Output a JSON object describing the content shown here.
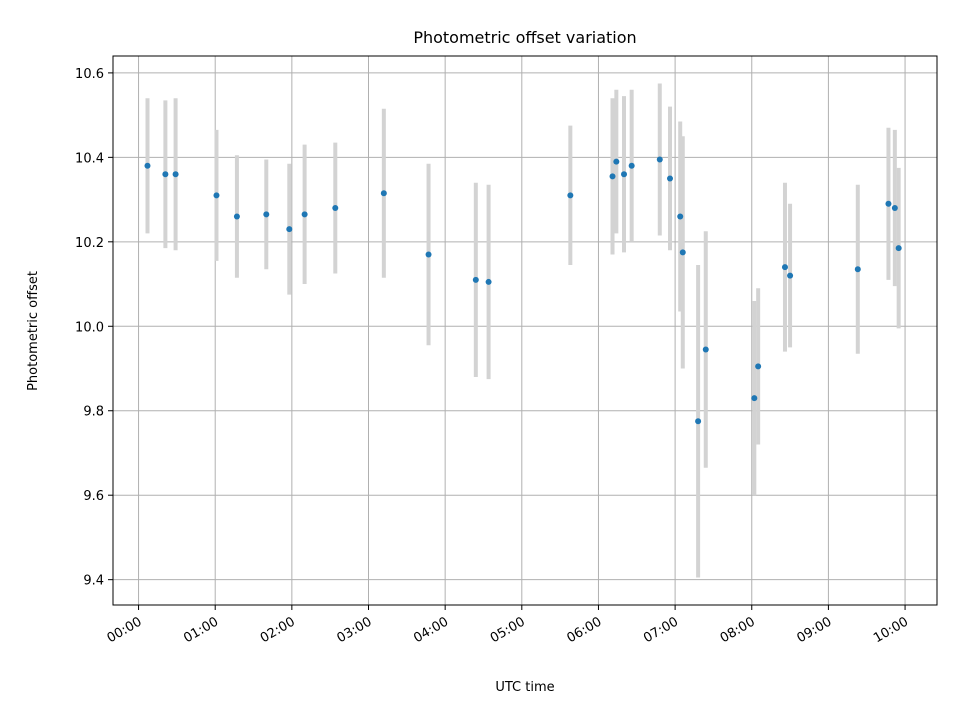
{
  "chart_data": {
    "type": "scatter",
    "title": "Photometric offset variation",
    "xlabel": "UTC time",
    "ylabel": "Photometric offset",
    "grid": true,
    "x_unit": "UTC time (HH:MM)",
    "x_ticks": [
      "00:00",
      "01:00",
      "02:00",
      "03:00",
      "04:00",
      "05:00",
      "06:00",
      "07:00",
      "08:00",
      "09:00",
      "10:00"
    ],
    "y_ticks": [
      "9.4",
      "9.6",
      "9.8",
      "10.0",
      "10.2",
      "10.4",
      "10.6"
    ],
    "xlim": [
      "23:40",
      "10:25"
    ],
    "ylim": [
      9.34,
      10.64
    ],
    "marker_color": "#1f77b4",
    "errorbar_color": "#d3d3d3",
    "points": [
      {
        "time": "00:07",
        "y": 10.38,
        "yerr": 0.16
      },
      {
        "time": "00:21",
        "y": 10.36,
        "yerr": 0.175
      },
      {
        "time": "00:29",
        "y": 10.36,
        "yerr": 0.18
      },
      {
        "time": "01:01",
        "y": 10.31,
        "yerr": 0.155
      },
      {
        "time": "01:17",
        "y": 10.26,
        "yerr": 0.145
      },
      {
        "time": "01:40",
        "y": 10.265,
        "yerr": 0.13
      },
      {
        "time": "01:58",
        "y": 10.23,
        "yerr": 0.155
      },
      {
        "time": "02:10",
        "y": 10.265,
        "yerr": 0.165
      },
      {
        "time": "02:34",
        "y": 10.28,
        "yerr": 0.155
      },
      {
        "time": "03:12",
        "y": 10.315,
        "yerr": 0.2
      },
      {
        "time": "03:47",
        "y": 10.17,
        "yerr": 0.215
      },
      {
        "time": "04:24",
        "y": 10.11,
        "yerr": 0.23
      },
      {
        "time": "04:34",
        "y": 10.105,
        "yerr": 0.23
      },
      {
        "time": "05:38",
        "y": 10.31,
        "yerr": 0.165
      },
      {
        "time": "06:11",
        "y": 10.355,
        "yerr": 0.185
      },
      {
        "time": "06:14",
        "y": 10.39,
        "yerr": 0.17
      },
      {
        "time": "06:20",
        "y": 10.36,
        "yerr": 0.185
      },
      {
        "time": "06:26",
        "y": 10.38,
        "yerr": 0.18
      },
      {
        "time": "06:48",
        "y": 10.395,
        "yerr": 0.18
      },
      {
        "time": "06:56",
        "y": 10.35,
        "yerr": 0.17
      },
      {
        "time": "07:04",
        "y": 10.26,
        "yerr": 0.225
      },
      {
        "time": "07:06",
        "y": 10.175,
        "yerr": 0.275
      },
      {
        "time": "07:18",
        "y": 9.775,
        "yerr": 0.37
      },
      {
        "time": "07:24",
        "y": 9.945,
        "yerr": 0.28
      },
      {
        "time": "08:02",
        "y": 9.83,
        "yerr": 0.23
      },
      {
        "time": "08:05",
        "y": 9.905,
        "yerr": 0.185
      },
      {
        "time": "08:26",
        "y": 10.14,
        "yerr": 0.2
      },
      {
        "time": "08:30",
        "y": 10.12,
        "yerr": 0.17
      },
      {
        "time": "09:23",
        "y": 10.135,
        "yerr": 0.2
      },
      {
        "time": "09:47",
        "y": 10.29,
        "yerr": 0.18
      },
      {
        "time": "09:52",
        "y": 10.28,
        "yerr": 0.185
      },
      {
        "time": "09:55",
        "y": 10.185,
        "yerr": 0.19
      }
    ]
  }
}
